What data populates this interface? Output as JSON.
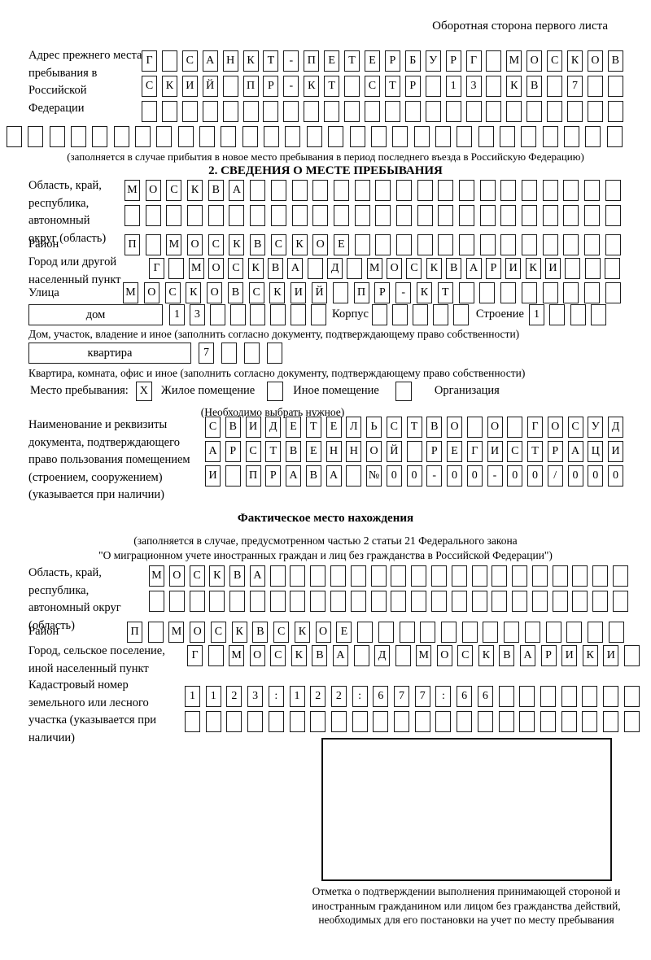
{
  "page": {
    "top_note": "Оборотная сторона первого листа"
  },
  "section_prev_address": {
    "label": "Адрес прежнего места пребывания в Российской Федерации",
    "row1": {
      "chars": "Г_САНКТ-ПЕТЕРБУРГ_МОСКОВ",
      "length": 24
    },
    "row2": {
      "chars": "СКИЙ_ПР-КТ_СТР_13_КВ_7",
      "length": 24
    },
    "row3": {
      "chars": "",
      "length": 24
    },
    "row_full": {
      "chars": "",
      "length": 29
    },
    "note": "(заполняется в случае прибытия в новое место пребывания в период последнего въезда в Российскую Федерацию)"
  },
  "section_stay": {
    "heading": "2. СВЕДЕНИЯ О МЕСТЕ ПРЕБЫВАНИЯ",
    "region_label": "Область, край, республика, автономный округ (область)",
    "region_row1": {
      "chars": "МОСКВА",
      "length": 24
    },
    "region_row2": {
      "chars": "",
      "length": 24
    },
    "district_label": "Район",
    "district_row": {
      "chars": "П_МОСКВСКОЕ",
      "length": 24
    },
    "city_label": "Город или другой населенный пункт",
    "city_row": {
      "chars": "Г_МОСКВА_Д_МОСКВАРИКИ",
      "length": 24
    },
    "street_label": "Улица",
    "street_row": {
      "chars": "МОСКОВСКИЙ_ПР-КТ",
      "length": 24
    },
    "house": {
      "box_label": "дом",
      "house_cells": {
        "chars": "13",
        "length": 8
      },
      "korpus_label": "Корпус",
      "korpus_cells": {
        "chars": "",
        "length": 5
      },
      "stroenie_label": "Строение",
      "stroenie_cells": {
        "chars": "1",
        "length": 4
      }
    },
    "house_note": "Дом, участок, владение и иное (заполнить согласно документу, подтверждающему право собственности)",
    "apartment": {
      "box_label": "квартира",
      "cells": {
        "chars": "7",
        "length": 4
      }
    },
    "apartment_note": "Квартира, комната, офис и иное (заполнить согласно документу, подтверждающему право собственности)",
    "stay_type": {
      "label": "Место пребывания:",
      "options": [
        {
          "label": "Жилое помещение",
          "mark": "X"
        },
        {
          "label": "Иное помещение",
          "mark": ""
        },
        {
          "label": "Организация",
          "mark": ""
        }
      ],
      "note": "(Необходимо выбрать нужное)"
    },
    "doc_label": "Наименование и реквизиты документа, подтверждающего право пользования помещением (строением, сооружением) (указывается при наличии)",
    "doc_row1": {
      "chars": "СВИДЕТЕЛЬСТВО_О_ГОСУД",
      "length": 21
    },
    "doc_row2": {
      "chars": "АРСТВЕННОЙ_РЕГИСТРАЦИ",
      "length": 21
    },
    "doc_row3": {
      "chars": "И_ПРАВА_№00-00-00/000",
      "length": 21
    }
  },
  "section_actual": {
    "heading": "Фактическое место нахождения",
    "note_line1": "(заполняется в случае, предусмотренном частью 2 статьи 21 Федерального закона",
    "note_line2": "\"О миграционном учете иностранных граждан и лиц без гражданства в Российской Федерации\")",
    "region_label": "Область, край, республика, автономный округ (область)",
    "region_row1": {
      "chars": "МОСКВА",
      "length": 24
    },
    "region_row2": {
      "chars": "",
      "length": 24
    },
    "district_label": "Район",
    "district_row": {
      "chars": "П_МОСКВСКОЕ",
      "length": 24
    },
    "city_label": "Город, сельское поселение, иной населенный пункт",
    "city_row": {
      "chars": "Г_МОСКВА_Д_МОСКВАРИКИ",
      "length": 22
    },
    "cadastral_label": "Кадастровый номер земельного или лесного участка (указывается при наличии)",
    "cadastral_row1": {
      "chars": "1123:122:677:66",
      "length": 22
    },
    "cadastral_row2": {
      "chars": "",
      "length": 22
    },
    "stamp_caption": "Отметка о подтверждении выполнения принимающей стороной и иностранным гражданином или лицом без гражданства действий, необходимых для его постановки на учет по месту пребывания"
  }
}
